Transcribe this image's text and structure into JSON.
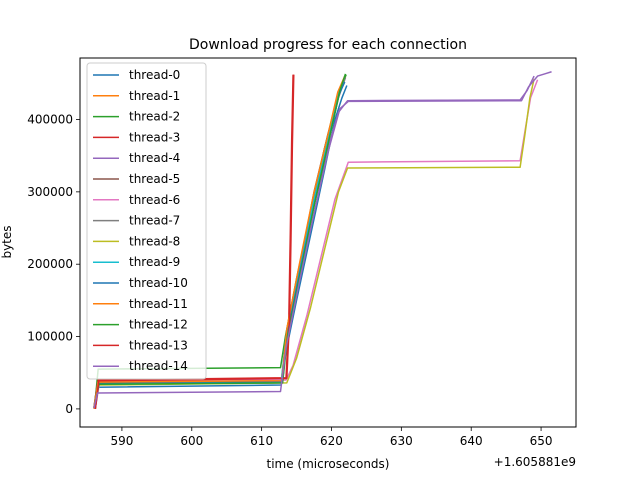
{
  "chart_data": {
    "type": "line",
    "title": "Download progress for each connection",
    "xlabel": "time (microseconds)",
    "ylabel": "bytes",
    "x_offset_label": "+1.605881e9",
    "xlim": [
      584,
      655
    ],
    "ylim": [
      -25000,
      485000
    ],
    "xticks": [
      590,
      600,
      610,
      620,
      630,
      640,
      650
    ],
    "yticks": [
      0,
      100000,
      200000,
      300000,
      400000
    ],
    "grid": false,
    "legend_position": "upper-left",
    "series": [
      {
        "name": "thread-0",
        "color": "#1f77b4",
        "points": [
          [
            586.0,
            2000
          ],
          [
            586.4,
            30000
          ],
          [
            612.8,
            33000
          ],
          [
            613.5,
            80000
          ],
          [
            615,
            150000
          ],
          [
            617,
            240000
          ],
          [
            619,
            330000
          ],
          [
            620.5,
            400000
          ],
          [
            621.5,
            430000
          ],
          [
            622.2,
            447000
          ]
        ]
      },
      {
        "name": "thread-1",
        "color": "#ff7f0e",
        "points": [
          [
            586.0,
            1000
          ],
          [
            586.5,
            35000
          ],
          [
            612.8,
            38000
          ],
          [
            613.5,
            95000
          ],
          [
            615,
            170000
          ],
          [
            617,
            260000
          ],
          [
            619,
            350000
          ],
          [
            620.5,
            420000
          ],
          [
            621.8,
            455000
          ]
        ]
      },
      {
        "name": "thread-2",
        "color": "#2ca02c",
        "points": [
          [
            586.1,
            3000
          ],
          [
            586.6,
            55000
          ],
          [
            612.7,
            57000
          ],
          [
            613.4,
            100000
          ],
          [
            615,
            180000
          ],
          [
            617,
            270000
          ],
          [
            619,
            360000
          ],
          [
            620.8,
            430000
          ],
          [
            622.1,
            462000
          ]
        ]
      },
      {
        "name": "thread-3",
        "color": "#d62728",
        "points": [
          [
            586.2,
            0
          ],
          [
            586.6,
            40000
          ],
          [
            613.5,
            43000
          ],
          [
            613.9,
            130000
          ],
          [
            614.1,
            240000
          ],
          [
            614.3,
            370000
          ],
          [
            614.5,
            462000
          ]
        ]
      },
      {
        "name": "thread-4",
        "color": "#9467bd",
        "points": [
          [
            586.1,
            1000
          ],
          [
            586.7,
            38000
          ],
          [
            612.9,
            40000
          ],
          [
            613.6,
            90000
          ],
          [
            615.5,
            190000
          ],
          [
            617.5,
            280000
          ],
          [
            619.5,
            360000
          ],
          [
            621.0,
            410000
          ],
          [
            622.3,
            426000
          ],
          [
            647.0,
            427000
          ],
          [
            648.0,
            440000
          ],
          [
            649.0,
            460000
          ]
        ]
      },
      {
        "name": "thread-5",
        "color": "#8c564b",
        "points": [
          [
            586.0,
            2000
          ],
          [
            586.5,
            36000
          ],
          [
            613.0,
            38000
          ],
          [
            613.7,
            110000
          ],
          [
            615.5,
            200000
          ],
          [
            617.5,
            300000
          ],
          [
            619.5,
            380000
          ],
          [
            621.2,
            440000
          ],
          [
            622.0,
            458000
          ]
        ]
      },
      {
        "name": "thread-6",
        "color": "#e377c2",
        "points": [
          [
            586.2,
            1000
          ],
          [
            586.8,
            37000
          ],
          [
            613.5,
            40000
          ],
          [
            614.5,
            60000
          ],
          [
            616.5,
            130000
          ],
          [
            618.5,
            210000
          ],
          [
            620.5,
            290000
          ],
          [
            622.0,
            330000
          ],
          [
            622.4,
            341000
          ],
          [
            647.0,
            343000
          ],
          [
            647.8,
            390000
          ],
          [
            648.5,
            430000
          ],
          [
            649.5,
            455000
          ]
        ]
      },
      {
        "name": "thread-7",
        "color": "#7f7f7f",
        "points": [
          [
            586.1,
            2000
          ],
          [
            586.6,
            34000
          ],
          [
            612.9,
            36000
          ],
          [
            613.6,
            100000
          ],
          [
            615.5,
            190000
          ],
          [
            617.5,
            290000
          ],
          [
            619.5,
            370000
          ],
          [
            621.0,
            430000
          ],
          [
            622.0,
            458000
          ]
        ]
      },
      {
        "name": "thread-8",
        "color": "#bcbd22",
        "points": [
          [
            586.0,
            1000
          ],
          [
            586.6,
            33000
          ],
          [
            613.6,
            36000
          ],
          [
            615.0,
            70000
          ],
          [
            617.0,
            140000
          ],
          [
            619.0,
            220000
          ],
          [
            621.0,
            300000
          ],
          [
            622.3,
            333000
          ],
          [
            647.0,
            334000
          ],
          [
            647.7,
            380000
          ],
          [
            648.4,
            430000
          ],
          [
            649.0,
            456000
          ]
        ]
      },
      {
        "name": "thread-9",
        "color": "#17becf",
        "points": [
          [
            586.1,
            2000
          ],
          [
            586.6,
            35000
          ],
          [
            612.8,
            37000
          ],
          [
            613.5,
            100000
          ],
          [
            615.3,
            185000
          ],
          [
            617.3,
            280000
          ],
          [
            619.3,
            365000
          ],
          [
            620.8,
            430000
          ],
          [
            621.8,
            457000
          ]
        ]
      },
      {
        "name": "thread-10",
        "color": "#1f77b4",
        "points": [
          [
            586.2,
            1000
          ],
          [
            586.7,
            36000
          ],
          [
            613.0,
            38000
          ],
          [
            613.7,
            105000
          ],
          [
            615.6,
            195000
          ],
          [
            617.6,
            285000
          ],
          [
            619.6,
            370000
          ],
          [
            621.1,
            435000
          ],
          [
            621.9,
            452000
          ]
        ]
      },
      {
        "name": "thread-11",
        "color": "#ff7f0e",
        "points": [
          [
            586.0,
            0
          ],
          [
            586.6,
            37000
          ],
          [
            612.9,
            39000
          ],
          [
            613.6,
            110000
          ],
          [
            615.4,
            200000
          ],
          [
            617.4,
            295000
          ],
          [
            619.4,
            375000
          ],
          [
            620.9,
            438000
          ],
          [
            621.9,
            460000
          ]
        ]
      },
      {
        "name": "thread-12",
        "color": "#2ca02c",
        "points": [
          [
            586.1,
            1000
          ],
          [
            586.7,
            34000
          ],
          [
            613.0,
            36000
          ],
          [
            613.7,
            100000
          ],
          [
            615.6,
            190000
          ],
          [
            617.6,
            285000
          ],
          [
            619.6,
            370000
          ],
          [
            621.2,
            440000
          ],
          [
            622.0,
            463000
          ]
        ]
      },
      {
        "name": "thread-13",
        "color": "#d62728",
        "points": [
          [
            586.2,
            0
          ],
          [
            586.7,
            39000
          ],
          [
            613.6,
            42000
          ],
          [
            614.0,
            125000
          ],
          [
            614.2,
            235000
          ],
          [
            614.4,
            365000
          ],
          [
            614.6,
            462000
          ]
        ]
      },
      {
        "name": "thread-14",
        "color": "#9467bd",
        "points": [
          [
            586.0,
            1000
          ],
          [
            586.5,
            22000
          ],
          [
            612.7,
            24000
          ],
          [
            613.5,
            85000
          ],
          [
            615.5,
            180000
          ],
          [
            617.5,
            270000
          ],
          [
            619.5,
            355000
          ],
          [
            621.2,
            415000
          ],
          [
            622.4,
            425000
          ],
          [
            647.2,
            426000
          ],
          [
            648.2,
            445000
          ],
          [
            649.5,
            460000
          ],
          [
            650.5,
            463000
          ],
          [
            651.5,
            466000
          ]
        ]
      }
    ]
  }
}
